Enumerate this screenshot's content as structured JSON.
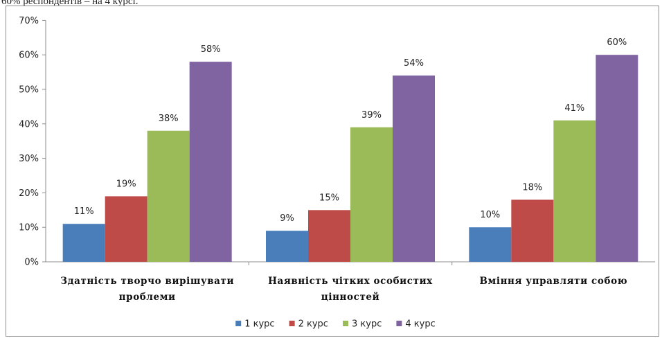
{
  "document": {
    "top_text": "60% респондентів – на 4 курсі."
  },
  "chart_data": {
    "type": "bar",
    "categories": [
      [
        "Здатність творчо вирішувати",
        "проблеми"
      ],
      [
        "Наявність чітких особистих",
        "цінностей"
      ],
      [
        "Вміння управляти собою"
      ]
    ],
    "series": [
      {
        "name": "1 курс",
        "values": [
          11,
          9,
          10
        ],
        "labels": [
          "11%",
          "9%",
          "10%"
        ],
        "color": "#4a7ebb"
      },
      {
        "name": "2 курс",
        "values": [
          19,
          15,
          18
        ],
        "labels": [
          "19%",
          "15%",
          "18%"
        ],
        "color": "#be4b48"
      },
      {
        "name": "3 курс",
        "values": [
          38,
          39,
          41
        ],
        "labels": [
          "38%",
          "39%",
          "41%"
        ],
        "color": "#9bbb59"
      },
      {
        "name": "4 курс",
        "values": [
          58,
          54,
          60
        ],
        "labels": [
          "58%",
          "54%",
          "60%"
        ],
        "color": "#8064a2"
      }
    ],
    "ylim": [
      0,
      70
    ],
    "yticks": [
      "0%",
      "10%",
      "20%",
      "30%",
      "40%",
      "50%",
      "60%",
      "70%"
    ],
    "legend_position": "bottom",
    "grid": false
  }
}
